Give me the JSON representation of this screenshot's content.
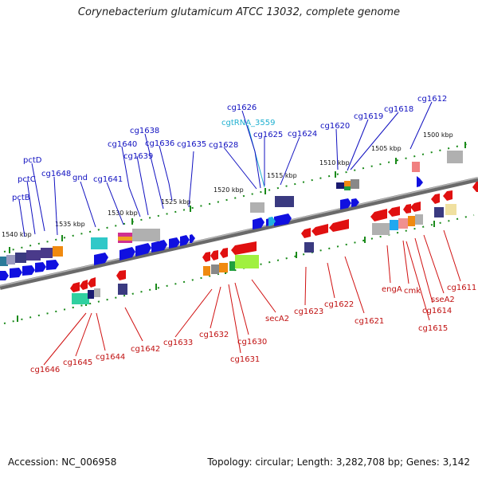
{
  "header": {
    "title": "Corynebacterium glutamicum ATCC 13032, complete genome"
  },
  "footer": {
    "accession": "Accession: NC_006958",
    "summary": "Topology: circular; Length: 3,282,708 bp; Genes: 3,142"
  },
  "scale_labels": [
    "1500 kbp",
    "1505 kbp",
    "1510 kbp",
    "1515 kbp",
    "1520 kbp",
    "1525 kbp",
    "1530 kbp",
    "1535 kbp",
    "1540 kbp"
  ],
  "top_labels": [
    "cg1612",
    "cg1618",
    "cg1619",
    "cg1620",
    "cgtRNA_3559",
    "cg1624",
    "cg1625",
    "cg1626",
    "cg1628",
    "cg1635",
    "cg1636",
    "cg1638",
    "cg1639",
    "cg1640",
    "cg1641",
    "gnd",
    "cg1648",
    "pctD",
    "pctC",
    "pctB"
  ],
  "bottom_labels": [
    "cg1611",
    "sseA2",
    "cg1614",
    "cg1615",
    "cmk",
    "engA",
    "cg1621",
    "cg1622",
    "cg1623",
    "secA2",
    "cg1630",
    "cg1631",
    "cg1632",
    "cg1633",
    "cg1642",
    "cg1644",
    "cg1645",
    "cg1646"
  ],
  "colors": {
    "forward": "#1010e0",
    "reverse": "#e01010",
    "trna": "#20b0d0",
    "backbone": "#777777",
    "tick": "#1a8a1a"
  }
}
